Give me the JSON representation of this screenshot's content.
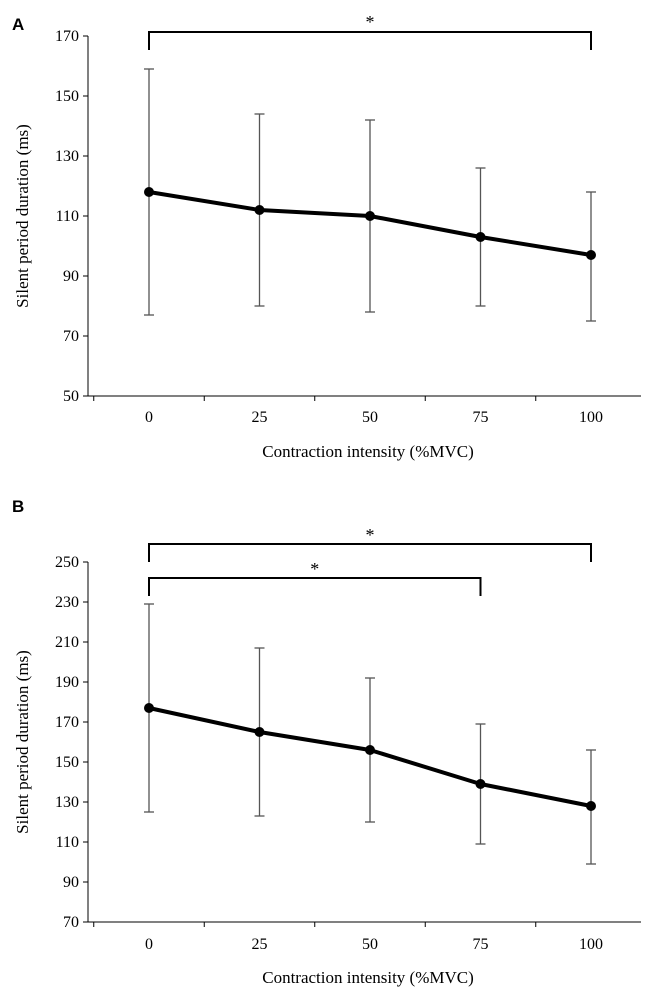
{
  "chart_data": [
    {
      "panel_label": "A",
      "type": "line",
      "xlabel": "Contraction intensity (%MVC)",
      "ylabel": "Silent period duration (ms)",
      "categories": [
        "0",
        "25",
        "50",
        "75",
        "100"
      ],
      "x": [
        0,
        25,
        50,
        75,
        100
      ],
      "series": [
        {
          "name": "Silent period duration",
          "values": [
            118,
            112,
            110,
            103,
            97
          ],
          "err_low": [
            77,
            80,
            78,
            80,
            75
          ],
          "err_high": [
            159,
            144,
            142,
            126,
            118
          ]
        }
      ],
      "ylim": [
        50,
        170
      ],
      "yticks": [
        "50",
        "70",
        "90",
        "110",
        "130",
        "150",
        "170"
      ],
      "significance": [
        {
          "from": 0,
          "to": 100,
          "label": "*"
        }
      ]
    },
    {
      "panel_label": "B",
      "type": "line",
      "xlabel": "Contraction intensity (%MVC)",
      "ylabel": "Silent period duration (ms)",
      "categories": [
        "0",
        "25",
        "50",
        "75",
        "100"
      ],
      "x": [
        0,
        25,
        50,
        75,
        100
      ],
      "series": [
        {
          "name": "Silent period duration",
          "values": [
            177,
            165,
            156,
            139,
            128
          ],
          "err_low": [
            125,
            123,
            120,
            109,
            99
          ],
          "err_high": [
            229,
            207,
            192,
            169,
            156
          ]
        }
      ],
      "ylim": [
        70,
        250
      ],
      "yticks": [
        "70",
        "90",
        "110",
        "130",
        "150",
        "170",
        "190",
        "210",
        "230",
        "250"
      ],
      "significance": [
        {
          "from": 0,
          "to": 100,
          "label": "*"
        },
        {
          "from": 0,
          "to": 75,
          "label": "*"
        }
      ]
    }
  ]
}
